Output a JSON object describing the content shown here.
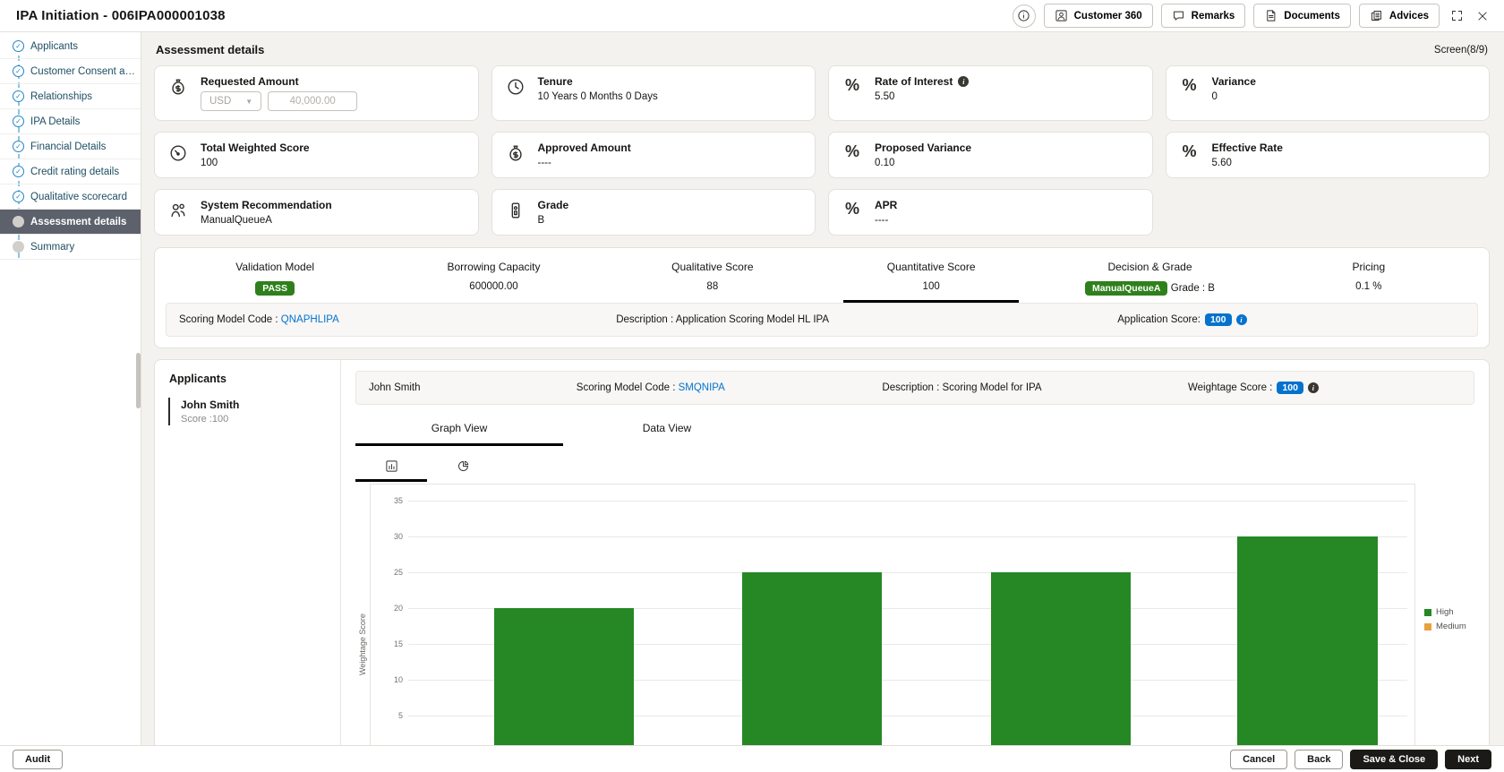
{
  "window": {
    "title": "IPA Initiation - 006IPA000001038",
    "toolbar": {
      "customer360": "Customer 360",
      "remarks": "Remarks",
      "documents": "Documents",
      "advices": "Advices"
    }
  },
  "sidebar": {
    "items": [
      {
        "label": "Applicants",
        "state": "done"
      },
      {
        "label": "Customer Consent and …",
        "state": "done"
      },
      {
        "label": "Relationships",
        "state": "done"
      },
      {
        "label": "IPA Details",
        "state": "done"
      },
      {
        "label": "Financial Details",
        "state": "done"
      },
      {
        "label": "Credit rating details",
        "state": "done"
      },
      {
        "label": "Qualitative scorecard",
        "state": "done"
      },
      {
        "label": "Assessment details",
        "state": "active"
      },
      {
        "label": "Summary",
        "state": "pending"
      }
    ]
  },
  "header": {
    "title": "Assessment details",
    "screen_indicator": "Screen(8/9)"
  },
  "cards": {
    "requested_amount": {
      "label": "Requested Amount",
      "currency": "USD",
      "amount": "40,000.00"
    },
    "tenure": {
      "label": "Tenure",
      "value": "10 Years 0 Months 0 Days"
    },
    "rate_of_interest": {
      "label": "Rate of Interest",
      "value": "5.50"
    },
    "variance": {
      "label": "Variance",
      "value": "0"
    },
    "total_weighted_score": {
      "label": "Total Weighted Score",
      "value": "100"
    },
    "approved_amount": {
      "label": "Approved Amount",
      "value": "----"
    },
    "proposed_variance": {
      "label": "Proposed Variance",
      "value": "0.10"
    },
    "effective_rate": {
      "label": "Effective Rate",
      "value": "5.60"
    },
    "system_recommendation": {
      "label": "System Recommendation",
      "value": "ManualQueueA"
    },
    "grade": {
      "label": "Grade",
      "value": "B"
    },
    "apr": {
      "label": "APR",
      "value": "----"
    }
  },
  "summary_columns": {
    "validation_model": {
      "label": "Validation Model",
      "badge": "PASS"
    },
    "borrowing_capacity": {
      "label": "Borrowing Capacity",
      "value": "600000.00"
    },
    "qualitative_score": {
      "label": "Qualitative Score",
      "value": "88"
    },
    "quantitative_score": {
      "label": "Quantitative Score",
      "value": "100"
    },
    "decision_grade": {
      "label": "Decision & Grade",
      "badge": "ManualQueueA",
      "value": "Grade : B"
    },
    "pricing": {
      "label": "Pricing",
      "value": "0.1 %"
    }
  },
  "scoring_row": {
    "model_code_label": "Scoring Model Code :",
    "model_code": "QNAPHLIPA",
    "description": "Description : Application Scoring Model HL IPA",
    "score_label": "Application Score:",
    "score": "100"
  },
  "applicants_panel": {
    "title": "Applicants",
    "items": [
      {
        "name": "John Smith",
        "score": "Score :100"
      }
    ]
  },
  "applicant_detail": {
    "name": "John Smith",
    "model_code_label": "Scoring Model Code :",
    "model_code": "SMQNIPA",
    "description": "Description : Scoring Model for IPA",
    "score_label": "Weightage Score :",
    "score": "100"
  },
  "view_tabs": {
    "graph": "Graph View",
    "data": "Data View"
  },
  "chart_data": {
    "type": "bar",
    "title": "",
    "xlabel": "",
    "ylabel": "Weightage Score",
    "ylim": [
      0,
      35
    ],
    "ytick_step": 5,
    "grid": true,
    "legend_position": "right",
    "categories": [
      "",
      "",
      "",
      ""
    ],
    "series": [
      {
        "name": "High",
        "color": "#268824",
        "values": [
          20,
          25,
          25,
          30
        ]
      },
      {
        "name": "Medium",
        "color": "#e8a13f",
        "values": []
      }
    ],
    "legend": [
      {
        "label": "High",
        "color": "#268824"
      },
      {
        "label": "Medium",
        "color": "#e8a13f"
      }
    ]
  },
  "footer": {
    "audit": "Audit",
    "cancel": "Cancel",
    "back": "Back",
    "save_close": "Save & Close",
    "next": "Next"
  },
  "colors": {
    "accent_blue": "#0572ce",
    "badge_green": "#2f801c",
    "bar_green": "#268824",
    "legend_orange": "#e8a13f",
    "primary_dark": "#161513"
  }
}
